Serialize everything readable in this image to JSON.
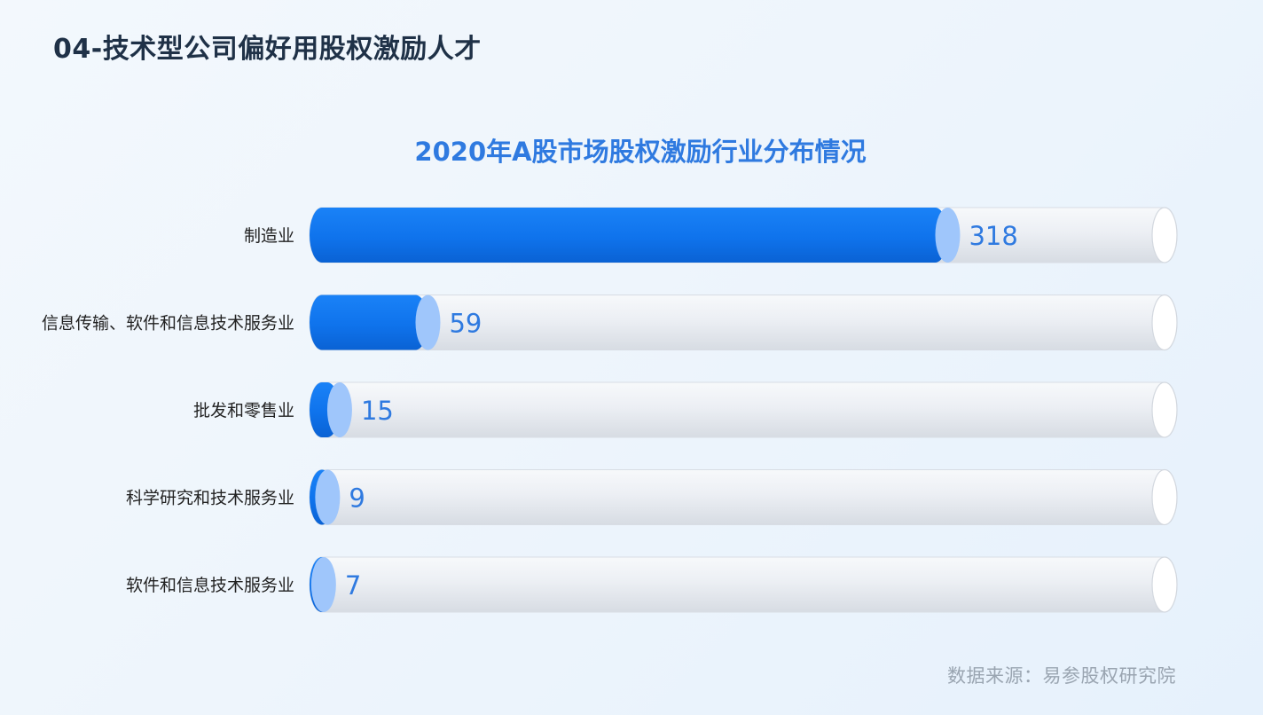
{
  "page": {
    "title": "04-技术型公司偏好用股权激励人才",
    "source": "数据来源：易参股权研究院"
  },
  "chart_data": {
    "type": "bar",
    "orientation": "horizontal",
    "title": "2020年A股市场股权激励行业分布情况",
    "categories": [
      "制造业",
      "信息传输、软件和信息技术服务业",
      "批发和零售业",
      "科学研究和技术服务业",
      "软件和信息技术服务业"
    ],
    "values": [
      318,
      59,
      15,
      9,
      7
    ],
    "xlim": [
      0,
      400
    ],
    "grid": false,
    "legend": "none",
    "bar_color": "#1177f0",
    "cap_color": "#9fc6fb",
    "track_color": "#e9edf3",
    "value_label_color": "#2f7ae0",
    "category_label_color": "#222222"
  }
}
